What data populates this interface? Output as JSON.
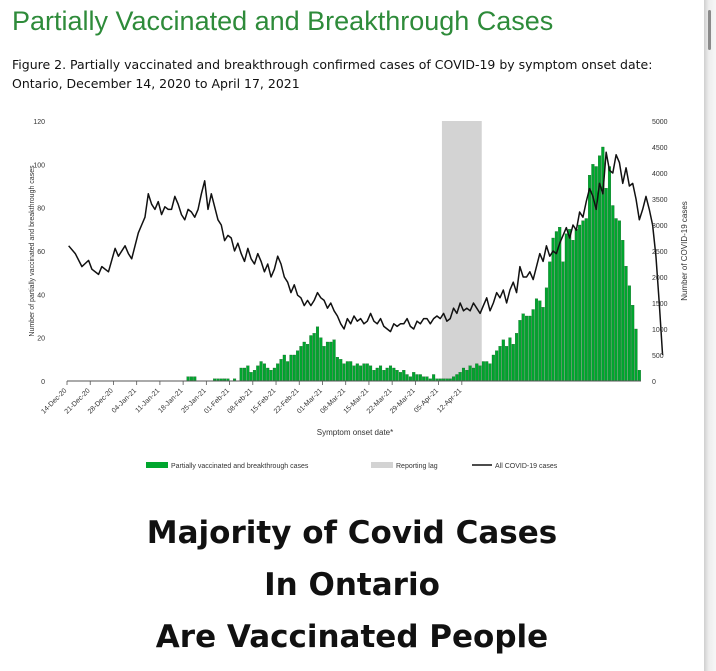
{
  "heading": "Partially Vaccinated and Breakthrough Cases",
  "caption": {
    "line1": "Figure 2. Partially vaccinated and breakthrough confirmed cases of COVID-19 by symptom onset date:",
    "line2": "Ontario, December 14, 2020 to April 17, 2021"
  },
  "chart_data": {
    "type": "bar",
    "xlabel": "Symptom onset date*",
    "ylabel": "Number of partially vaccinated and breakthrough cases",
    "y2label": "Number of COVID-19 cases",
    "ylim": [
      0,
      120
    ],
    "y2lim": [
      0,
      5000
    ],
    "yticks": [
      "0",
      "20",
      "40",
      "60",
      "80",
      "100",
      "120"
    ],
    "y2ticks": [
      "0",
      "500",
      "1000",
      "1500",
      "2000",
      "2500",
      "3000",
      "3500",
      "4000",
      "4500",
      "5000"
    ],
    "xticks": [
      "14-Dec-20",
      "21-Dec-20",
      "28-Dec-20",
      "04-Jan-21",
      "11-Jan-21",
      "18-Jan-21",
      "25-Jan-21",
      "01-Feb-21",
      "08-Feb-21",
      "15-Feb-21",
      "22-Feb-21",
      "01-Mar-21",
      "08-Mar-21",
      "15-Mar-21",
      "22-Mar-21",
      "29-Mar-21",
      "05-Apr-21",
      "12-Apr-21"
    ],
    "start_date": "2020-12-14",
    "reporting_lag": [
      "2021-04-06",
      "2021-04-17"
    ],
    "legend_placement": "bottom",
    "legend": {
      "bars": "Partially vaccinated and breakthrough cases",
      "lag": "Reporting lag",
      "line": "All COVID-19 cases"
    },
    "colors": {
      "bars": "#00a62e",
      "lag": "#d3d3d3",
      "line": "#111111"
    },
    "series": [
      {
        "name": "Partially vaccinated and breakthrough cases",
        "axis": "left",
        "values": [
          0,
          0,
          0,
          0,
          0,
          0,
          0,
          0,
          0,
          0,
          0,
          0,
          0,
          0,
          0,
          0,
          0,
          0,
          0,
          0,
          0,
          0,
          0,
          0,
          0,
          0,
          0,
          0,
          0,
          0,
          0,
          0,
          0,
          0,
          0,
          0,
          2,
          2,
          2,
          0,
          0,
          0,
          0,
          0,
          1,
          1,
          1,
          1,
          1,
          0,
          1,
          0,
          6,
          6,
          7,
          4,
          5,
          7,
          9,
          8,
          6,
          5,
          6,
          8,
          10,
          12,
          9,
          12,
          12,
          14,
          16,
          18,
          17,
          21,
          22,
          25,
          20,
          16,
          18,
          18,
          19,
          11,
          10,
          8,
          9,
          9,
          7,
          8,
          7,
          8,
          8,
          7,
          5,
          6,
          7,
          5,
          6,
          7,
          6,
          5,
          4,
          5,
          3,
          2,
          4,
          3,
          3,
          2,
          2,
          1,
          3,
          1,
          1,
          1,
          1,
          1,
          2,
          3,
          4,
          6,
          5,
          7,
          6,
          8,
          7,
          9,
          9,
          8,
          12,
          14,
          16,
          19,
          16,
          20,
          17,
          22,
          28,
          31,
          30,
          30,
          33,
          38,
          37,
          34,
          43,
          55,
          66,
          69,
          71,
          55,
          68,
          70,
          65,
          70,
          72,
          74,
          75,
          95,
          100,
          99,
          104,
          108,
          89,
          99,
          81,
          75,
          74,
          65,
          53,
          44,
          35,
          24,
          5
        ],
        "label_note": "daily counts, December 14, 2020 to April 17, 2021"
      },
      {
        "name": "All COVID-19 cases",
        "axis": "right",
        "points": [
          [
            0,
            2600
          ],
          [
            2,
            2450
          ],
          [
            4,
            2200
          ],
          [
            6,
            2320
          ],
          [
            7,
            2150
          ],
          [
            9,
            2050
          ],
          [
            10,
            2200
          ],
          [
            12,
            2100
          ],
          [
            14,
            2550
          ],
          [
            15,
            2400
          ],
          [
            17,
            2600
          ],
          [
            18,
            2450
          ],
          [
            19,
            2350
          ],
          [
            21,
            2850
          ],
          [
            22,
            3000
          ],
          [
            23,
            3150
          ],
          [
            24,
            3600
          ],
          [
            25,
            3400
          ],
          [
            26,
            3300
          ],
          [
            27,
            3450
          ],
          [
            28,
            3200
          ],
          [
            29,
            3350
          ],
          [
            30,
            3300
          ],
          [
            31,
            3300
          ],
          [
            32,
            3550
          ],
          [
            33,
            3400
          ],
          [
            34,
            3200
          ],
          [
            35,
            3100
          ],
          [
            36,
            3300
          ],
          [
            37,
            3250
          ],
          [
            38,
            3150
          ],
          [
            39,
            3300
          ],
          [
            40,
            3600
          ],
          [
            41,
            3850
          ],
          [
            42,
            3300
          ],
          [
            43,
            3600
          ],
          [
            44,
            3350
          ],
          [
            45,
            3100
          ],
          [
            46,
            3000
          ],
          [
            47,
            2700
          ],
          [
            48,
            2800
          ],
          [
            49,
            2750
          ],
          [
            50,
            2500
          ],
          [
            51,
            2650
          ],
          [
            52,
            2450
          ],
          [
            53,
            2300
          ],
          [
            54,
            2550
          ],
          [
            55,
            2350
          ],
          [
            56,
            2250
          ],
          [
            57,
            2450
          ],
          [
            58,
            2300
          ],
          [
            59,
            2100
          ],
          [
            60,
            2250
          ],
          [
            61,
            2000
          ],
          [
            62,
            2150
          ],
          [
            63,
            2400
          ],
          [
            64,
            2250
          ],
          [
            65,
            2000
          ],
          [
            66,
            1900
          ],
          [
            67,
            1700
          ],
          [
            68,
            1850
          ],
          [
            69,
            1650
          ],
          [
            70,
            1600
          ],
          [
            71,
            1450
          ],
          [
            72,
            1550
          ],
          [
            73,
            1450
          ],
          [
            74,
            1550
          ],
          [
            75,
            1700
          ],
          [
            76,
            1600
          ],
          [
            77,
            1550
          ],
          [
            78,
            1400
          ],
          [
            79,
            1500
          ],
          [
            80,
            1350
          ],
          [
            81,
            1250
          ],
          [
            82,
            1100
          ],
          [
            83,
            1000
          ],
          [
            84,
            1200
          ],
          [
            85,
            1100
          ],
          [
            86,
            1250
          ],
          [
            87,
            1150
          ],
          [
            88,
            1200
          ],
          [
            89,
            1100
          ],
          [
            90,
            1150
          ],
          [
            91,
            1300
          ],
          [
            92,
            1150
          ],
          [
            93,
            1100
          ],
          [
            94,
            1200
          ],
          [
            95,
            1050
          ],
          [
            96,
            1000
          ],
          [
            97,
            950
          ],
          [
            98,
            1100
          ],
          [
            99,
            1050
          ],
          [
            100,
            1100
          ],
          [
            101,
            1100
          ],
          [
            102,
            1200
          ],
          [
            103,
            1050
          ],
          [
            104,
            1000
          ],
          [
            105,
            1150
          ],
          [
            106,
            1100
          ],
          [
            107,
            1200
          ],
          [
            108,
            1200
          ],
          [
            109,
            1100
          ],
          [
            110,
            1200
          ],
          [
            111,
            1250
          ],
          [
            112,
            1200
          ],
          [
            113,
            1300
          ],
          [
            114,
            1150
          ],
          [
            115,
            1200
          ],
          [
            116,
            1400
          ],
          [
            117,
            1300
          ],
          [
            118,
            1500
          ],
          [
            119,
            1350
          ],
          [
            120,
            1400
          ],
          [
            121,
            1350
          ],
          [
            122,
            1500
          ],
          [
            123,
            1400
          ],
          [
            124,
            1300
          ],
          [
            125,
            1450
          ],
          [
            126,
            1600
          ],
          [
            127,
            1350
          ],
          [
            128,
            1500
          ],
          [
            129,
            1700
          ],
          [
            130,
            1600
          ],
          [
            131,
            1750
          ],
          [
            132,
            1500
          ],
          [
            133,
            1750
          ],
          [
            134,
            1900
          ],
          [
            135,
            1700
          ],
          [
            136,
            2200
          ],
          [
            137,
            2000
          ],
          [
            138,
            2000
          ],
          [
            139,
            2100
          ],
          [
            140,
            1950
          ],
          [
            141,
            2200
          ],
          [
            142,
            2450
          ],
          [
            143,
            2300
          ],
          [
            144,
            2600
          ],
          [
            145,
            2400
          ],
          [
            146,
            2500
          ],
          [
            147,
            2450
          ],
          [
            148,
            2650
          ],
          [
            149,
            2800
          ],
          [
            150,
            2950
          ],
          [
            151,
            2750
          ],
          [
            152,
            3000
          ],
          [
            153,
            2900
          ],
          [
            154,
            3250
          ],
          [
            155,
            3150
          ],
          [
            156,
            3450
          ],
          [
            157,
            3700
          ],
          [
            158,
            3550
          ],
          [
            159,
            3300
          ],
          [
            160,
            3800
          ],
          [
            161,
            3600
          ],
          [
            162,
            4400
          ],
          [
            163,
            4050
          ],
          [
            164,
            4000
          ],
          [
            165,
            4350
          ],
          [
            166,
            4200
          ],
          [
            167,
            3800
          ],
          [
            168,
            4100
          ],
          [
            169,
            3750
          ],
          [
            170,
            3800
          ],
          [
            171,
            3500
          ],
          [
            172,
            3100
          ],
          [
            173,
            3300
          ],
          [
            174,
            3550
          ],
          [
            175,
            3300
          ],
          [
            176,
            3000
          ],
          [
            177,
            2400
          ],
          [
            178,
            1500
          ],
          [
            179,
            500
          ]
        ]
      }
    ]
  },
  "headline": {
    "line1": "Majority of Covid Cases",
    "line2": "In Ontario",
    "line3": "Are Vaccinated People"
  }
}
